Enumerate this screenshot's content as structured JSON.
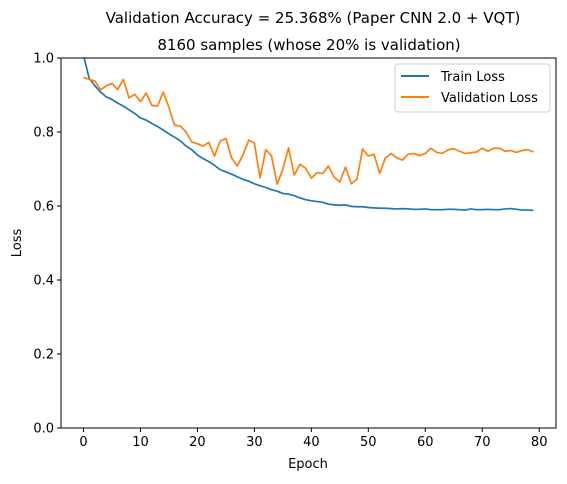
{
  "chart_data": {
    "type": "line",
    "title": "Validation Accuracy = 25.368% (Paper CNN 2.0 + VQT)",
    "subtitle": "8160 samples (whose 20% is validation)",
    "xlabel": "Epoch",
    "ylabel": "Loss",
    "xlim": [
      -3.95,
      82.95
    ],
    "ylim": [
      0,
      1
    ],
    "xticks": [
      "0",
      "10",
      "20",
      "30",
      "40",
      "50",
      "60",
      "70",
      "80"
    ],
    "yticks": [
      "0.0",
      "0.2",
      "0.4",
      "0.6",
      "0.8",
      "1.0"
    ],
    "legend_position": "top-right",
    "grid": false,
    "x": [
      0,
      1,
      2,
      3,
      4,
      5,
      6,
      7,
      8,
      9,
      10,
      11,
      12,
      13,
      14,
      15,
      16,
      17,
      18,
      19,
      20,
      21,
      22,
      23,
      24,
      25,
      26,
      27,
      28,
      29,
      30,
      31,
      32,
      33,
      34,
      35,
      36,
      37,
      38,
      39,
      40,
      41,
      42,
      43,
      44,
      45,
      46,
      47,
      48,
      49,
      50,
      51,
      52,
      53,
      54,
      55,
      56,
      57,
      58,
      59,
      60,
      61,
      62,
      63,
      64,
      65,
      66,
      67,
      68,
      69,
      70,
      71,
      72,
      73,
      74,
      75,
      76,
      77,
      78,
      79
    ],
    "series": [
      {
        "name": "Train Loss",
        "color": "#1f77b4",
        "values": [
          1.007,
          0.945,
          0.925,
          0.908,
          0.895,
          0.888,
          0.878,
          0.87,
          0.86,
          0.85,
          0.838,
          0.832,
          0.823,
          0.815,
          0.805,
          0.795,
          0.786,
          0.776,
          0.762,
          0.752,
          0.738,
          0.728,
          0.72,
          0.71,
          0.698,
          0.692,
          0.686,
          0.679,
          0.672,
          0.667,
          0.66,
          0.655,
          0.65,
          0.644,
          0.64,
          0.634,
          0.632,
          0.628,
          0.622,
          0.617,
          0.614,
          0.612,
          0.61,
          0.605,
          0.603,
          0.602,
          0.603,
          0.599,
          0.598,
          0.598,
          0.596,
          0.595,
          0.594,
          0.594,
          0.593,
          0.592,
          0.593,
          0.592,
          0.591,
          0.591,
          0.592,
          0.59,
          0.59,
          0.59,
          0.591,
          0.591,
          0.59,
          0.589,
          0.592,
          0.59,
          0.59,
          0.591,
          0.59,
          0.59,
          0.592,
          0.593,
          0.591,
          0.589,
          0.589,
          0.588
        ]
      },
      {
        "name": "Validation Loss",
        "color": "#ff7f0e",
        "values": [
          0.948,
          0.942,
          0.938,
          0.914,
          0.925,
          0.931,
          0.915,
          0.942,
          0.892,
          0.902,
          0.882,
          0.905,
          0.872,
          0.87,
          0.908,
          0.866,
          0.818,
          0.816,
          0.8,
          0.773,
          0.768,
          0.762,
          0.772,
          0.735,
          0.776,
          0.782,
          0.73,
          0.708,
          0.738,
          0.778,
          0.77,
          0.676,
          0.752,
          0.736,
          0.659,
          0.7,
          0.757,
          0.683,
          0.713,
          0.702,
          0.675,
          0.69,
          0.688,
          0.708,
          0.678,
          0.665,
          0.705,
          0.66,
          0.672,
          0.754,
          0.735,
          0.74,
          0.688,
          0.73,
          0.742,
          0.73,
          0.724,
          0.74,
          0.742,
          0.736,
          0.742,
          0.756,
          0.745,
          0.742,
          0.752,
          0.755,
          0.748,
          0.742,
          0.744,
          0.746,
          0.756,
          0.748,
          0.756,
          0.756,
          0.748,
          0.75,
          0.745,
          0.75,
          0.752,
          0.746
        ]
      }
    ]
  }
}
